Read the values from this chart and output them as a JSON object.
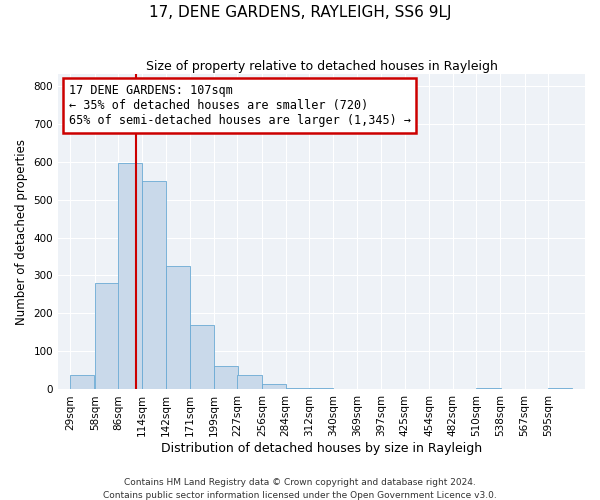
{
  "title": "17, DENE GARDENS, RAYLEIGH, SS6 9LJ",
  "subtitle": "Size of property relative to detached houses in Rayleigh",
  "xlabel": "Distribution of detached houses by size in Rayleigh",
  "ylabel": "Number of detached properties",
  "bin_labels": [
    "29sqm",
    "58sqm",
    "86sqm",
    "114sqm",
    "142sqm",
    "171sqm",
    "199sqm",
    "227sqm",
    "256sqm",
    "284sqm",
    "312sqm",
    "340sqm",
    "369sqm",
    "397sqm",
    "425sqm",
    "454sqm",
    "482sqm",
    "510sqm",
    "538sqm",
    "567sqm",
    "595sqm"
  ],
  "bar_heights": [
    37,
    280,
    595,
    550,
    325,
    170,
    63,
    37,
    15,
    5,
    5,
    0,
    0,
    0,
    0,
    0,
    0,
    5,
    0,
    0,
    5
  ],
  "bar_color": "#c9d9ea",
  "bar_edgecolor": "#6aaad4",
  "red_line_color": "#cc0000",
  "annotation_text": "17 DENE GARDENS: 107sqm\n← 35% of detached houses are smaller (720)\n65% of semi-detached houses are larger (1,345) →",
  "annotation_box_facecolor": "#ffffff",
  "annotation_box_edgecolor": "#cc0000",
  "ylim": [
    0,
    830
  ],
  "footer1": "Contains HM Land Registry data © Crown copyright and database right 2024.",
  "footer2": "Contains public sector information licensed under the Open Government Licence v3.0.",
  "bin_edges": [
    29,
    58,
    86,
    114,
    142,
    171,
    199,
    227,
    256,
    284,
    312,
    340,
    369,
    397,
    425,
    454,
    482,
    510,
    538,
    567,
    595
  ],
  "property_sqm": 107,
  "bg_color": "#eef2f7",
  "grid_color": "#ffffff"
}
